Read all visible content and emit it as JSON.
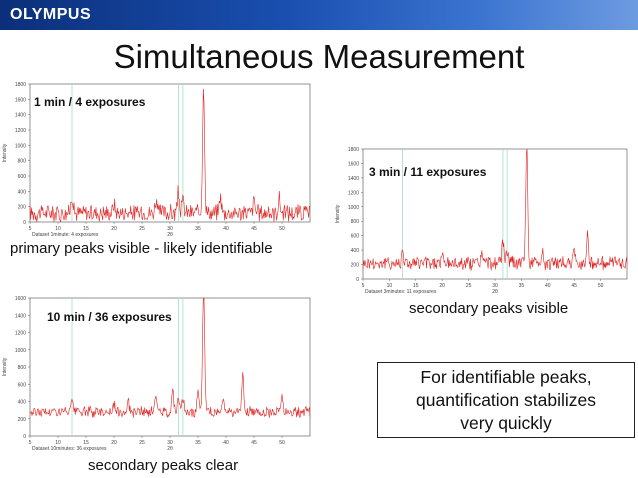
{
  "brand": "OLYMPUS",
  "title": "Simultaneous Measurement",
  "note": [
    "For identifiable peaks,",
    "quantification stabilizes",
    "very quickly"
  ],
  "chart_data": [
    {
      "type": "line",
      "annotation": "1 min / 4 exposures",
      "caption": "primary peaks visible - likely identifiable",
      "dataset_label": "Dataset 1minute: 4 exposures",
      "xlabel": "2θ",
      "ylabel": "Intensity",
      "xlim": [
        5,
        55
      ],
      "ylim": [
        0,
        1800
      ],
      "xticks": [
        5,
        10,
        15,
        20,
        25,
        30,
        35,
        40,
        45,
        50
      ],
      "yticks": [
        0,
        200,
        400,
        600,
        800,
        1000,
        1200,
        1400,
        1600,
        1800
      ],
      "baseline": 120,
      "noise": 130,
      "peaks": [
        [
          12.5,
          240
        ],
        [
          20.0,
          120
        ],
        [
          27.5,
          180
        ],
        [
          31.5,
          260
        ],
        [
          32.3,
          160
        ],
        [
          36.0,
          1650
        ],
        [
          39.0,
          220
        ],
        [
          45.0,
          160
        ],
        [
          49.5,
          180
        ]
      ],
      "reference_lines": [
        12.5,
        31.5,
        32.3
      ]
    },
    {
      "type": "line",
      "annotation": "3 min / 11 exposures",
      "caption": "secondary peaks visible",
      "dataset_label": "Dataset 3minutes: 11 exposures",
      "xlabel": "2θ",
      "ylabel": "Intensity",
      "xlim": [
        5,
        55
      ],
      "ylim": [
        0,
        1800
      ],
      "xticks": [
        5,
        10,
        15,
        20,
        25,
        30,
        35,
        40,
        45,
        50
      ],
      "yticks": [
        0,
        200,
        400,
        600,
        800,
        1000,
        1200,
        1400,
        1600,
        1800
      ],
      "baseline": 220,
      "noise": 110,
      "peaks": [
        [
          12.5,
          200
        ],
        [
          20.0,
          100
        ],
        [
          27.5,
          140
        ],
        [
          31.5,
          320
        ],
        [
          32.3,
          180
        ],
        [
          36.0,
          1650
        ],
        [
          39.0,
          180
        ],
        [
          45.0,
          140
        ],
        [
          47.5,
          420
        ]
      ],
      "reference_lines": [
        12.5,
        31.5,
        32.3
      ]
    },
    {
      "type": "line",
      "annotation": "10 min / 36 exposures",
      "caption": "secondary peaks clear",
      "dataset_label": "Dataset 10minutes: 36 exposures",
      "xlabel": "2θ",
      "ylabel": "Intensity",
      "xlim": [
        5,
        55
      ],
      "ylim": [
        0,
        1600
      ],
      "xticks": [
        5,
        10,
        15,
        20,
        25,
        30,
        35,
        40,
        45,
        50
      ],
      "yticks": [
        0,
        200,
        400,
        600,
        800,
        1000,
        1200,
        1400,
        1600
      ],
      "baseline": 280,
      "noise": 70,
      "peaks": [
        [
          12.5,
          120
        ],
        [
          20.0,
          80
        ],
        [
          22.5,
          140
        ],
        [
          27.5,
          200
        ],
        [
          30.5,
          260
        ],
        [
          31.5,
          200
        ],
        [
          32.3,
          140
        ],
        [
          35.0,
          260
        ],
        [
          36.0,
          1460
        ],
        [
          39.5,
          160
        ],
        [
          43.0,
          420
        ],
        [
          50.0,
          200
        ]
      ],
      "reference_lines": [
        12.5,
        31.5,
        32.3
      ]
    }
  ],
  "colors": {
    "trace": "#e0201e",
    "reference": "#9fe0c8",
    "axis": "#666666"
  }
}
